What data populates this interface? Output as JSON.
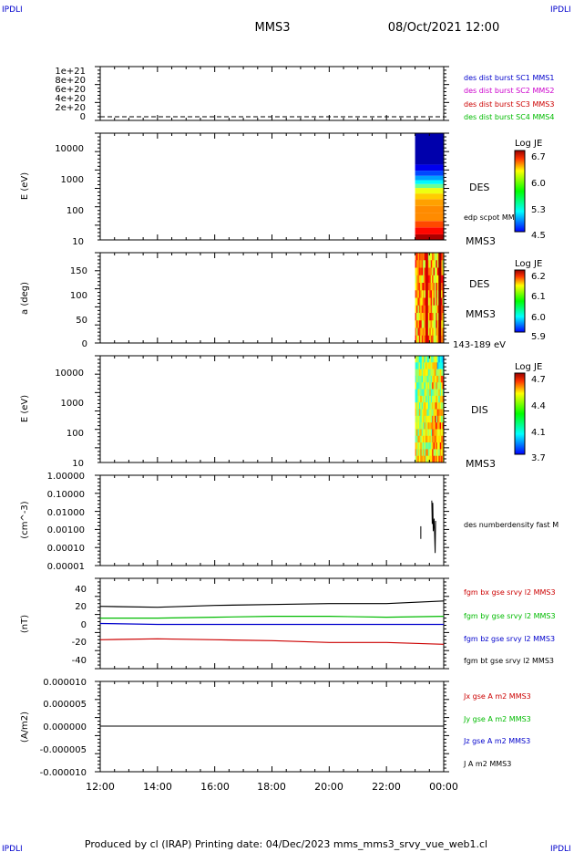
{
  "corner_left_top": "IPDLI",
  "corner_right_top": "IPDLI",
  "corner_left_bottom": "IPDLI",
  "corner_right_bottom": "IPDLI",
  "header": {
    "spacecraft": "MMS3",
    "datetime": "08/Oct/2021 12:00"
  },
  "footer": "Produced by cl (IRAP)   Printing date: 04/Dec/2023   mms_mms3_srvy_vue_web1.cl",
  "colors": {
    "blue": "#0000cc",
    "magenta": "#cc00cc",
    "red": "#cc0000",
    "green": "#00bb00",
    "black": "#000000"
  },
  "chart_data": [
    {
      "type": "line",
      "title": "",
      "ylabel": "",
      "yticks": [
        "0",
        "2e+20",
        "4e+20",
        "6e+20",
        "8e+20",
        "1e+21"
      ],
      "ylim": [
        0,
        1.2e+21
      ],
      "legend": [
        {
          "name": "des dist burst SC1 MMS1",
          "color": "#0000cc"
        },
        {
          "name": "des dist burst SC2 MMS2",
          "color": "#cc00cc"
        },
        {
          "name": "des dist burst SC3 MMS3",
          "color": "#cc0000"
        },
        {
          "name": "des dist burst SC4 MMS4",
          "color": "#00bb00"
        }
      ],
      "series": [
        {
          "name": "des dist burst SC3 MMS3",
          "x": [
            "12:00",
            "00:00"
          ],
          "values": [
            0,
            0
          ]
        }
      ]
    },
    {
      "type": "heatmap",
      "ylabel": "E (eV)",
      "yscale": "log",
      "ylim": [
        10,
        25000
      ],
      "yticks": [
        "10",
        "100",
        "1000",
        "10000"
      ],
      "side_labels": [
        "DES",
        "edp scpot MMS3",
        "MMS3"
      ],
      "colorbar": {
        "label": "Log JE",
        "ticks": [
          "4.5",
          "5.3",
          "6.0",
          "6.7"
        ],
        "range": [
          4.5,
          6.8
        ]
      },
      "data_start": "23:00",
      "data_end": "00:00",
      "profile": [
        {
          "E": 10,
          "logJE": 6.7
        },
        {
          "E": 15,
          "logJE": 6.5
        },
        {
          "E": 25,
          "logJE": 6.35
        },
        {
          "E": 40,
          "logJE": 6.2
        },
        {
          "E": 70,
          "logJE": 6.2
        },
        {
          "E": 120,
          "logJE": 6.15
        },
        {
          "E": 200,
          "logJE": 6.05
        },
        {
          "E": 300,
          "logJE": 5.9
        },
        {
          "E": 450,
          "logJE": 5.6
        },
        {
          "E": 600,
          "logJE": 5.35
        },
        {
          "E": 800,
          "logJE": 5.15
        },
        {
          "E": 1100,
          "logJE": 4.95
        },
        {
          "E": 1600,
          "logJE": 4.75
        },
        {
          "E": 2500,
          "logJE": 4.6
        },
        {
          "E": 25000,
          "logJE": 4.5
        }
      ]
    },
    {
      "type": "heatmap",
      "ylabel": "a (deg)",
      "ylim": [
        0,
        180
      ],
      "yticks": [
        "0",
        "50",
        "100",
        "150"
      ],
      "side_labels": [
        "DES",
        "MMS3",
        "143-189 eV"
      ],
      "colorbar": {
        "label": "Log JE",
        "ticks": [
          "5.9",
          "6.0",
          "6.1",
          "6.2"
        ],
        "range": [
          5.9,
          6.22
        ]
      },
      "data_start": "23:00",
      "data_end": "00:00"
    },
    {
      "type": "heatmap",
      "ylabel": "E (eV)",
      "yscale": "log",
      "ylim": [
        10,
        25000
      ],
      "yticks": [
        "10",
        "100",
        "1000",
        "10000"
      ],
      "side_labels": [
        "DIS",
        "MMS3"
      ],
      "colorbar": {
        "label": "Log JE",
        "ticks": [
          "3.7",
          "4.1",
          "4.4",
          "4.7"
        ],
        "range": [
          3.7,
          4.8
        ]
      },
      "data_start": "23:00",
      "data_end": "00:00"
    },
    {
      "type": "line",
      "ylabel": "(cm^-3)",
      "yscale": "log",
      "ylim": [
        1e-05,
        1
      ],
      "yticks": [
        "0.00001",
        "0.00010",
        "0.00100",
        "0.01000",
        "0.10000",
        "1.00000"
      ],
      "legend": [
        {
          "name": "des numberdensity fast M",
          "color": "#000000"
        }
      ],
      "series": [
        {
          "name": "des numberdensity fast M",
          "x": [
            "23:12",
            "23:12",
            "23:35",
            "23:36",
            "23:37",
            "23:38",
            "23:40",
            "23:42",
            "23:43"
          ],
          "values": [
            0.0015,
            0.0003,
            0.04,
            0.002,
            0.03,
            0.0008,
            0.004,
            5e-05,
            0.003
          ]
        }
      ]
    },
    {
      "type": "line",
      "ylabel": "(nT)",
      "ylim": [
        -50,
        50
      ],
      "yticks": [
        "-40",
        "-20",
        "0",
        "20",
        "40"
      ],
      "x": [
        "12:00",
        "14:00",
        "16:00",
        "18:00",
        "20:00",
        "22:00",
        "00:00"
      ],
      "legend": [
        {
          "name": "fgm bx gse srvy l2 MMS3",
          "color": "#cc0000"
        },
        {
          "name": "fgm by gse srvy l2 MMS3",
          "color": "#00bb00"
        },
        {
          "name": "fgm bz gse srvy l2 MMS3",
          "color": "#0000cc"
        },
        {
          "name": "fgm bt gse srvy l2 MMS3",
          "color": "#000000"
        }
      ],
      "series": [
        {
          "name": "fgm bt gse srvy l2 MMS3",
          "values": [
            19,
            18,
            20,
            21,
            22,
            22,
            25
          ]
        },
        {
          "name": "fgm by gse srvy l2 MMS3",
          "values": [
            6,
            6,
            7,
            8,
            8,
            7,
            8
          ]
        },
        {
          "name": "fgm bz gse srvy l2 MMS3",
          "values": [
            0,
            -1,
            -1,
            -1,
            -1,
            -1,
            -1
          ]
        },
        {
          "name": "fgm bx gse srvy l2 MMS3",
          "values": [
            -18,
            -17,
            -18,
            -19,
            -21,
            -21,
            -23
          ]
        }
      ]
    },
    {
      "type": "line",
      "ylabel": "(A/m2)",
      "ylim": [
        -1e-05,
        1e-05
      ],
      "yticks": [
        "-0.000010",
        "-0.000005",
        "0.000000",
        "0.000005",
        "0.000010"
      ],
      "xticks": [
        "12:00",
        "14:00",
        "16:00",
        "18:00",
        "20:00",
        "22:00",
        "00:00"
      ],
      "legend": [
        {
          "name": "Jx gse A m2 MMS3",
          "color": "#cc0000"
        },
        {
          "name": "Jy gse A m2 MMS3",
          "color": "#00bb00"
        },
        {
          "name": "Jz gse A m2 MMS3",
          "color": "#0000cc"
        },
        {
          "name": "J A m2 MMS3",
          "color": "#000000"
        }
      ],
      "series": [
        {
          "name": "J A m2 MMS3",
          "x": [
            "12:00",
            "00:00"
          ],
          "values": [
            0,
            0
          ]
        }
      ]
    }
  ]
}
